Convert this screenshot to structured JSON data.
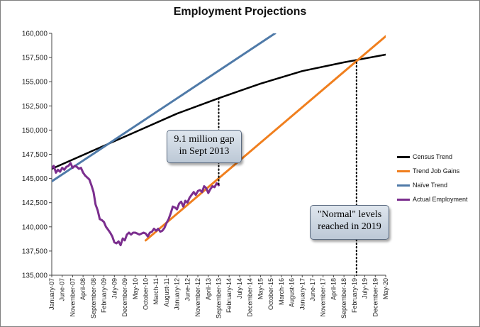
{
  "chart_data": {
    "type": "line",
    "title": "Employment Projections",
    "y_ticks": [
      "160,000",
      "157,500",
      "155,000",
      "152,500",
      "150,000",
      "147,500",
      "145,000",
      "142,500",
      "140,000",
      "137,500",
      "135,000"
    ],
    "ylim": [
      135000,
      160000
    ],
    "x_tick_labels": [
      "January-07",
      "June-07",
      "November-07",
      "April-08",
      "September-08",
      "February-09",
      "July-09",
      "December-09",
      "May-10",
      "October-10",
      "March-11",
      "August-11",
      "January-12",
      "June-12",
      "November-12",
      "April-13",
      "September-13",
      "February-14",
      "July-14",
      "December-14",
      "May-15",
      "October-15",
      "March-16",
      "August-16",
      "January-17",
      "June-17",
      "November-17",
      "April-18",
      "September-18",
      "February-19",
      "July-19",
      "December-19",
      "May-20"
    ],
    "x_unit": "months since January 2007",
    "xlim": [
      0,
      160
    ],
    "series": [
      {
        "name": "Census Trend",
        "color": "#000000",
        "x": [
          0,
          20,
          40,
          60,
          80,
          100,
          120,
          140,
          160
        ],
        "y": [
          146000,
          147900,
          149800,
          151700,
          153300,
          154800,
          156100,
          157000,
          157800
        ]
      },
      {
        "name": "Trend Job Gains",
        "color": "#f07f1e",
        "x": [
          45,
          160
        ],
        "y": [
          138600,
          159700
        ]
      },
      {
        "name": "Naïve Trend",
        "color": "#4f7aa8",
        "x": [
          0,
          107
        ],
        "y": [
          144700,
          160000
        ]
      },
      {
        "name": "Actual Employment",
        "color": "#7b2e8e",
        "x": [
          0,
          1,
          2,
          3,
          4,
          5,
          6,
          7,
          8,
          9,
          10,
          11,
          12,
          13,
          14,
          15,
          16,
          17,
          18,
          19,
          20,
          21,
          22,
          23,
          24,
          25,
          26,
          27,
          28,
          29,
          30,
          31,
          32,
          33,
          34,
          35,
          36,
          37,
          38,
          39,
          40,
          41,
          42,
          43,
          44,
          45,
          46,
          47,
          48,
          49,
          50,
          51,
          52,
          53,
          54,
          55,
          56,
          57,
          58,
          59,
          60,
          61,
          62,
          63,
          64,
          65,
          66,
          67,
          68,
          69,
          70,
          71,
          72,
          73,
          74,
          75,
          76,
          77,
          78,
          79,
          80
        ],
        "y": [
          146100,
          146300,
          145600,
          145900,
          145700,
          146100,
          145900,
          146200,
          146300,
          146600,
          146100,
          146300,
          146200,
          146000,
          146100,
          145600,
          145300,
          145100,
          144900,
          144300,
          143600,
          142300,
          141700,
          140800,
          140700,
          140500,
          140000,
          139700,
          139400,
          139000,
          138400,
          138300,
          138500,
          138100,
          138800,
          138600,
          139200,
          139400,
          139200,
          139400,
          139400,
          139300,
          139200,
          139300,
          139400,
          139300,
          139000,
          139400,
          139500,
          139800,
          139600,
          139800,
          139500,
          139600,
          139900,
          140400,
          140800,
          141400,
          142100,
          142000,
          141800,
          142400,
          142600,
          142100,
          142700,
          142500,
          143000,
          143300,
          143600,
          143300,
          143700,
          143800,
          143600,
          144200,
          144000,
          143500,
          143900,
          144200,
          144100,
          144500,
          144300
        ]
      }
    ],
    "annotations": [
      {
        "line1": "9.1 million gap",
        "line2": "in Sept 2013",
        "x": 80,
        "y_from": 153300,
        "y_to": 144300
      },
      {
        "line1": "\"Normal\" levels",
        "line2": "reached in 2019",
        "x": 146,
        "y_from": 157000,
        "y_to": 135000
      }
    ],
    "legend_position": "right",
    "grid": false
  }
}
